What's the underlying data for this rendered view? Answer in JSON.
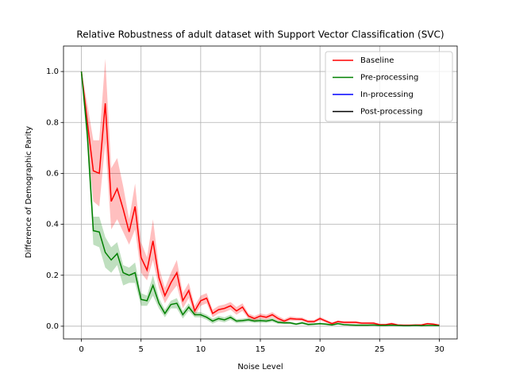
{
  "chart_data": {
    "type": "line",
    "title": "Relative Robustness of adult dataset with Support Vector Classification (SVC)",
    "xlabel": "Noise Level",
    "ylabel": "Difference of Demographic Parity",
    "x": [
      0,
      0.5,
      1,
      1.5,
      2,
      2.5,
      3,
      3.5,
      4,
      4.5,
      5,
      5.5,
      6,
      6.5,
      7,
      7.5,
      8,
      8.5,
      9,
      9.5,
      10,
      10.5,
      11,
      11.5,
      12,
      12.5,
      13,
      13.5,
      14,
      14.5,
      15,
      15.5,
      16,
      16.5,
      17,
      17.5,
      18,
      18.5,
      19,
      19.5,
      20,
      20.5,
      21,
      21.5,
      22,
      22.5,
      23,
      23.5,
      24,
      24.5,
      25,
      25.5,
      26,
      26.5,
      27,
      27.5,
      28,
      28.5,
      29,
      29.5,
      30
    ],
    "series": [
      {
        "name": "Baseline",
        "color": "#ff0000",
        "values": [
          1.0,
          0.8,
          0.61,
          0.6,
          0.875,
          0.49,
          0.54,
          0.46,
          0.37,
          0.47,
          0.27,
          0.22,
          0.335,
          0.19,
          0.12,
          0.17,
          0.21,
          0.1,
          0.14,
          0.06,
          0.1,
          0.11,
          0.05,
          0.065,
          0.07,
          0.08,
          0.06,
          0.075,
          0.04,
          0.03,
          0.04,
          0.035,
          0.045,
          0.03,
          0.02,
          0.03,
          0.028,
          0.027,
          0.018,
          0.018,
          0.03,
          0.02,
          0.01,
          0.018,
          0.015,
          0.015,
          0.015,
          0.012,
          0.012,
          0.012,
          0.006,
          0.006,
          0.01,
          0.005,
          0.004,
          0.004,
          0.005,
          0.005,
          0.01,
          0.008,
          0.004
        ],
        "upper": [
          1.0,
          0.87,
          0.73,
          0.73,
          1.05,
          0.62,
          0.66,
          0.55,
          0.42,
          0.56,
          0.33,
          0.27,
          0.42,
          0.23,
          0.15,
          0.21,
          0.26,
          0.13,
          0.17,
          0.08,
          0.12,
          0.13,
          0.065,
          0.08,
          0.085,
          0.095,
          0.075,
          0.09,
          0.05,
          0.04,
          0.05,
          0.045,
          0.055,
          0.04,
          0.028,
          0.038,
          0.035,
          0.034,
          0.024,
          0.024,
          0.037,
          0.026,
          0.015,
          0.023,
          0.02,
          0.02,
          0.02,
          0.016,
          0.016,
          0.016,
          0.009,
          0.009,
          0.014,
          0.008,
          0.006,
          0.006,
          0.007,
          0.007,
          0.013,
          0.011,
          0.006
        ],
        "lower": [
          1.0,
          0.73,
          0.49,
          0.47,
          0.72,
          0.38,
          0.42,
          0.37,
          0.32,
          0.38,
          0.21,
          0.18,
          0.26,
          0.15,
          0.09,
          0.13,
          0.16,
          0.07,
          0.11,
          0.04,
          0.08,
          0.09,
          0.035,
          0.05,
          0.055,
          0.065,
          0.045,
          0.06,
          0.03,
          0.02,
          0.03,
          0.025,
          0.035,
          0.02,
          0.012,
          0.022,
          0.021,
          0.02,
          0.012,
          0.012,
          0.023,
          0.014,
          0.005,
          0.013,
          0.01,
          0.01,
          0.01,
          0.008,
          0.008,
          0.008,
          0.003,
          0.003,
          0.006,
          0.002,
          0.002,
          0.002,
          0.003,
          0.003,
          0.007,
          0.005,
          0.002
        ]
      },
      {
        "name": "Pre-processing",
        "color": "#008000",
        "values": [
          1.0,
          0.75,
          0.375,
          0.37,
          0.29,
          0.26,
          0.285,
          0.21,
          0.2,
          0.21,
          0.105,
          0.1,
          0.16,
          0.09,
          0.05,
          0.085,
          0.09,
          0.045,
          0.075,
          0.045,
          0.045,
          0.035,
          0.02,
          0.03,
          0.025,
          0.035,
          0.02,
          0.022,
          0.025,
          0.02,
          0.022,
          0.02,
          0.025,
          0.015,
          0.013,
          0.013,
          0.008,
          0.013,
          0.007,
          0.008,
          0.01,
          0.008,
          0.005,
          0.01,
          0.006,
          0.005,
          0.004,
          0.004,
          0.004,
          0.005,
          0.003,
          0.003,
          0.004,
          0.003,
          0.002,
          0.002,
          0.003,
          0.002,
          0.003,
          0.003,
          0.002
        ],
        "upper": [
          1.0,
          0.8,
          0.43,
          0.43,
          0.35,
          0.31,
          0.33,
          0.24,
          0.23,
          0.25,
          0.13,
          0.12,
          0.2,
          0.11,
          0.065,
          0.1,
          0.11,
          0.06,
          0.09,
          0.055,
          0.055,
          0.045,
          0.03,
          0.04,
          0.035,
          0.045,
          0.028,
          0.03,
          0.033,
          0.027,
          0.03,
          0.027,
          0.033,
          0.021,
          0.018,
          0.018,
          0.012,
          0.018,
          0.011,
          0.012,
          0.014,
          0.012,
          0.008,
          0.014,
          0.009,
          0.008,
          0.007,
          0.007,
          0.007,
          0.008,
          0.005,
          0.005,
          0.006,
          0.005,
          0.004,
          0.004,
          0.005,
          0.004,
          0.005,
          0.005,
          0.004
        ],
        "lower": [
          1.0,
          0.7,
          0.32,
          0.31,
          0.23,
          0.21,
          0.24,
          0.16,
          0.17,
          0.17,
          0.08,
          0.08,
          0.12,
          0.07,
          0.035,
          0.07,
          0.07,
          0.03,
          0.06,
          0.035,
          0.035,
          0.025,
          0.01,
          0.02,
          0.015,
          0.025,
          0.012,
          0.014,
          0.017,
          0.013,
          0.014,
          0.013,
          0.017,
          0.009,
          0.008,
          0.008,
          0.004,
          0.008,
          0.003,
          0.004,
          0.006,
          0.004,
          0.002,
          0.006,
          0.003,
          0.002,
          0.001,
          0.001,
          0.001,
          0.002,
          0.001,
          0.001,
          0.002,
          0.001,
          0,
          0,
          0.001,
          0,
          0.001,
          0.001,
          0
        ]
      },
      {
        "name": "In-processing",
        "color": "#0000ff",
        "values": [
          null,
          null,
          null,
          null,
          null,
          null,
          null,
          null,
          null,
          null,
          null,
          null,
          null,
          null,
          null,
          null,
          null,
          null,
          null,
          null,
          null,
          null,
          null,
          null,
          null,
          null,
          null,
          null,
          null,
          null,
          null,
          null,
          null,
          null,
          null,
          null,
          null,
          null,
          null,
          null,
          null,
          null,
          null,
          null,
          null,
          null,
          null,
          null,
          null,
          null,
          null,
          null,
          null,
          null,
          null,
          null,
          null,
          null,
          null,
          null,
          null
        ]
      },
      {
        "name": "Post-processing",
        "color": "#000000",
        "values": [
          null,
          null,
          null,
          null,
          null,
          null,
          null,
          null,
          null,
          null,
          null,
          null,
          null,
          null,
          null,
          null,
          null,
          null,
          null,
          null,
          null,
          null,
          null,
          null,
          null,
          null,
          null,
          null,
          null,
          null,
          null,
          null,
          null,
          null,
          null,
          null,
          null,
          null,
          null,
          null,
          null,
          null,
          null,
          null,
          null,
          null,
          null,
          null,
          null,
          null,
          null,
          null,
          null,
          null,
          null,
          null,
          null,
          null,
          null,
          null,
          null
        ]
      }
    ],
    "xlim": [
      -1.5,
      31.5
    ],
    "xticks": [
      0,
      5,
      10,
      15,
      20,
      25,
      30
    ],
    "ylim": [
      -0.05,
      1.1
    ],
    "yticks": [
      {
        "value": 0,
        "label": "0.0"
      },
      0.2,
      0.4,
      0.6,
      0.8,
      {
        "value": 1,
        "label": "1.0"
      }
    ],
    "grid": true,
    "legend": "upper right"
  }
}
